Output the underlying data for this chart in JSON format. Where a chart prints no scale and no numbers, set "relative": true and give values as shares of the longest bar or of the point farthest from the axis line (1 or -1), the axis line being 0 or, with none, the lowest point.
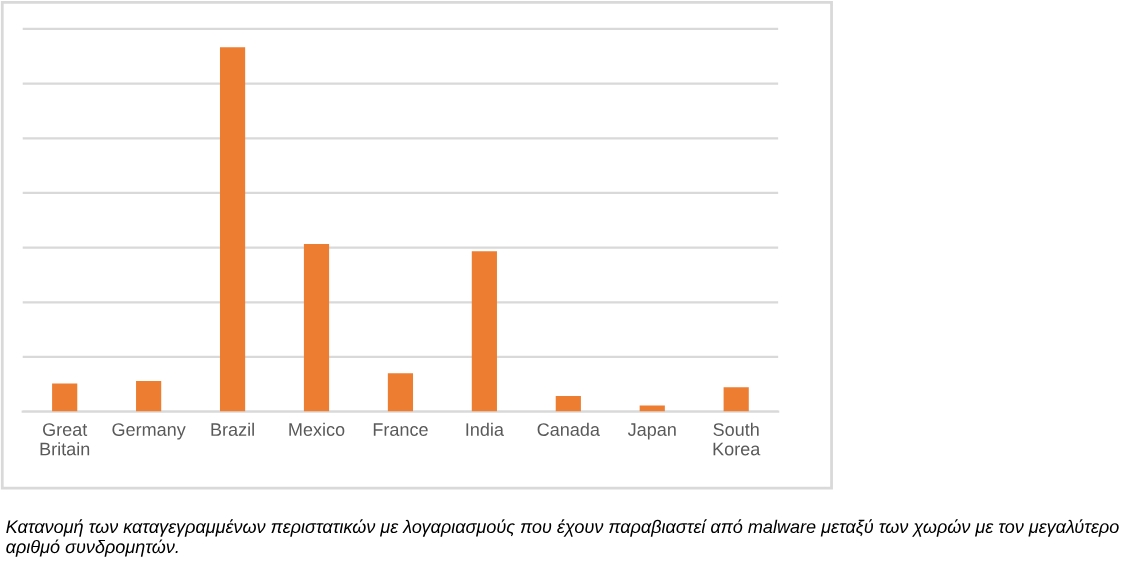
{
  "chart_data": {
    "type": "bar",
    "relative": true,
    "grid": "y",
    "color": "#ed7d31",
    "categories": [
      "Great\nBritain",
      "Germany",
      "Brazil",
      "Mexico",
      "France",
      "India",
      "Canada",
      "Japan",
      "South\nKorea"
    ],
    "values": [
      0.077,
      0.084,
      1,
      0.46,
      0.105,
      0.44,
      0.043,
      0.017,
      0.067
    ],
    "annotations": [
      "Κατανομή των καταγεγραμμένων περιστατικών με λογαριασμούς που έχουν παραβιαστεί από malware μεταξύ των χωρών με τον μεγαλύτερο αριθμό συνδρομητών."
    ]
  }
}
